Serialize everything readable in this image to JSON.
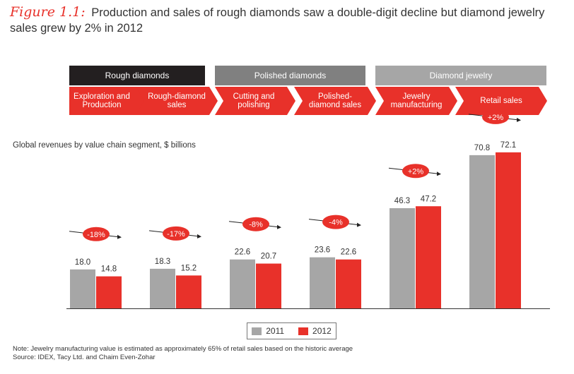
{
  "figure": {
    "label": "Figure 1.1:",
    "title": "Production and sales of rough diamonds saw a double-digit decline but diamond jewelry sales grew by 2% in 2012"
  },
  "categories": [
    {
      "label": "Rough diamonds",
      "color": "#231f20"
    },
    {
      "label": "Polished diamonds",
      "color": "#808080"
    },
    {
      "label": "Diamond jewelry",
      "color": "#a6a6a6"
    }
  ],
  "steps_color": "#e8312a",
  "steps": [
    {
      "label": "Exploration and Production"
    },
    {
      "label": "Rough-diamond sales"
    },
    {
      "label": "Cutting and polishing"
    },
    {
      "label": "Polished-diamond sales"
    },
    {
      "label": "Jewelry manufacturing"
    },
    {
      "label": "Retail sales"
    }
  ],
  "chart_data": {
    "type": "bar",
    "title": "Global revenues by value chain segment, $ billions",
    "categories": [
      "Exploration and Production",
      "Rough-diamond sales",
      "Cutting and polishing",
      "Polished-diamond sales",
      "Jewelry manufacturing",
      "Retail sales"
    ],
    "series": [
      {
        "name": "2011",
        "color": "#a6a6a6",
        "values": [
          18.0,
          18.3,
          22.6,
          23.6,
          46.3,
          70.8
        ],
        "labels": [
          "18.0",
          "18.3",
          "22.6",
          "23.6",
          "46.3",
          "70.8"
        ]
      },
      {
        "name": "2012",
        "color": "#e8312a",
        "values": [
          14.8,
          15.2,
          20.7,
          22.6,
          47.2,
          72.1
        ],
        "labels": [
          "14.8",
          "15.2",
          "20.7",
          "22.6",
          "47.2",
          "72.1"
        ]
      }
    ],
    "changes": [
      "-18%",
      "-17%",
      "-8%",
      "-4%",
      "+2%",
      "+2%"
    ],
    "ylim": [
      0,
      75
    ],
    "grid": false,
    "legend": "bottom-center"
  },
  "legend": {
    "label_2011": "2011",
    "label_2012": "2012"
  },
  "note": "Note:  Jewelry manufacturing value is estimated as approximately 65% of retail sales  based on the historic average",
  "source": "Source:  IDEX, Tacy Ltd. and Chaim Even-Zohar"
}
